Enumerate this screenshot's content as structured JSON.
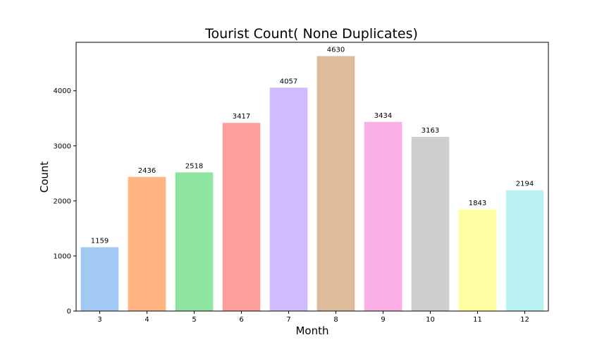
{
  "chart_data": {
    "type": "bar",
    "title": "Tourist Count( None Duplicates)",
    "xlabel": "Month",
    "ylabel": "Count",
    "categories": [
      "3",
      "4",
      "5",
      "6",
      "7",
      "8",
      "9",
      "10",
      "11",
      "12"
    ],
    "values": [
      1159,
      2436,
      2518,
      3417,
      4057,
      4630,
      3434,
      3163,
      1843,
      2194
    ],
    "ylim": [
      0,
      4880
    ],
    "yticks": [
      0,
      1000,
      2000,
      3000,
      4000
    ],
    "bar_colors": [
      "#a1c9f4",
      "#ffb482",
      "#8de5a1",
      "#ff9f9b",
      "#d0bbff",
      "#debb9b",
      "#fab0e4",
      "#cfcfcf",
      "#fffea3",
      "#b9f2f0"
    ],
    "grid": false,
    "legend": "none",
    "data_labels": true
  }
}
